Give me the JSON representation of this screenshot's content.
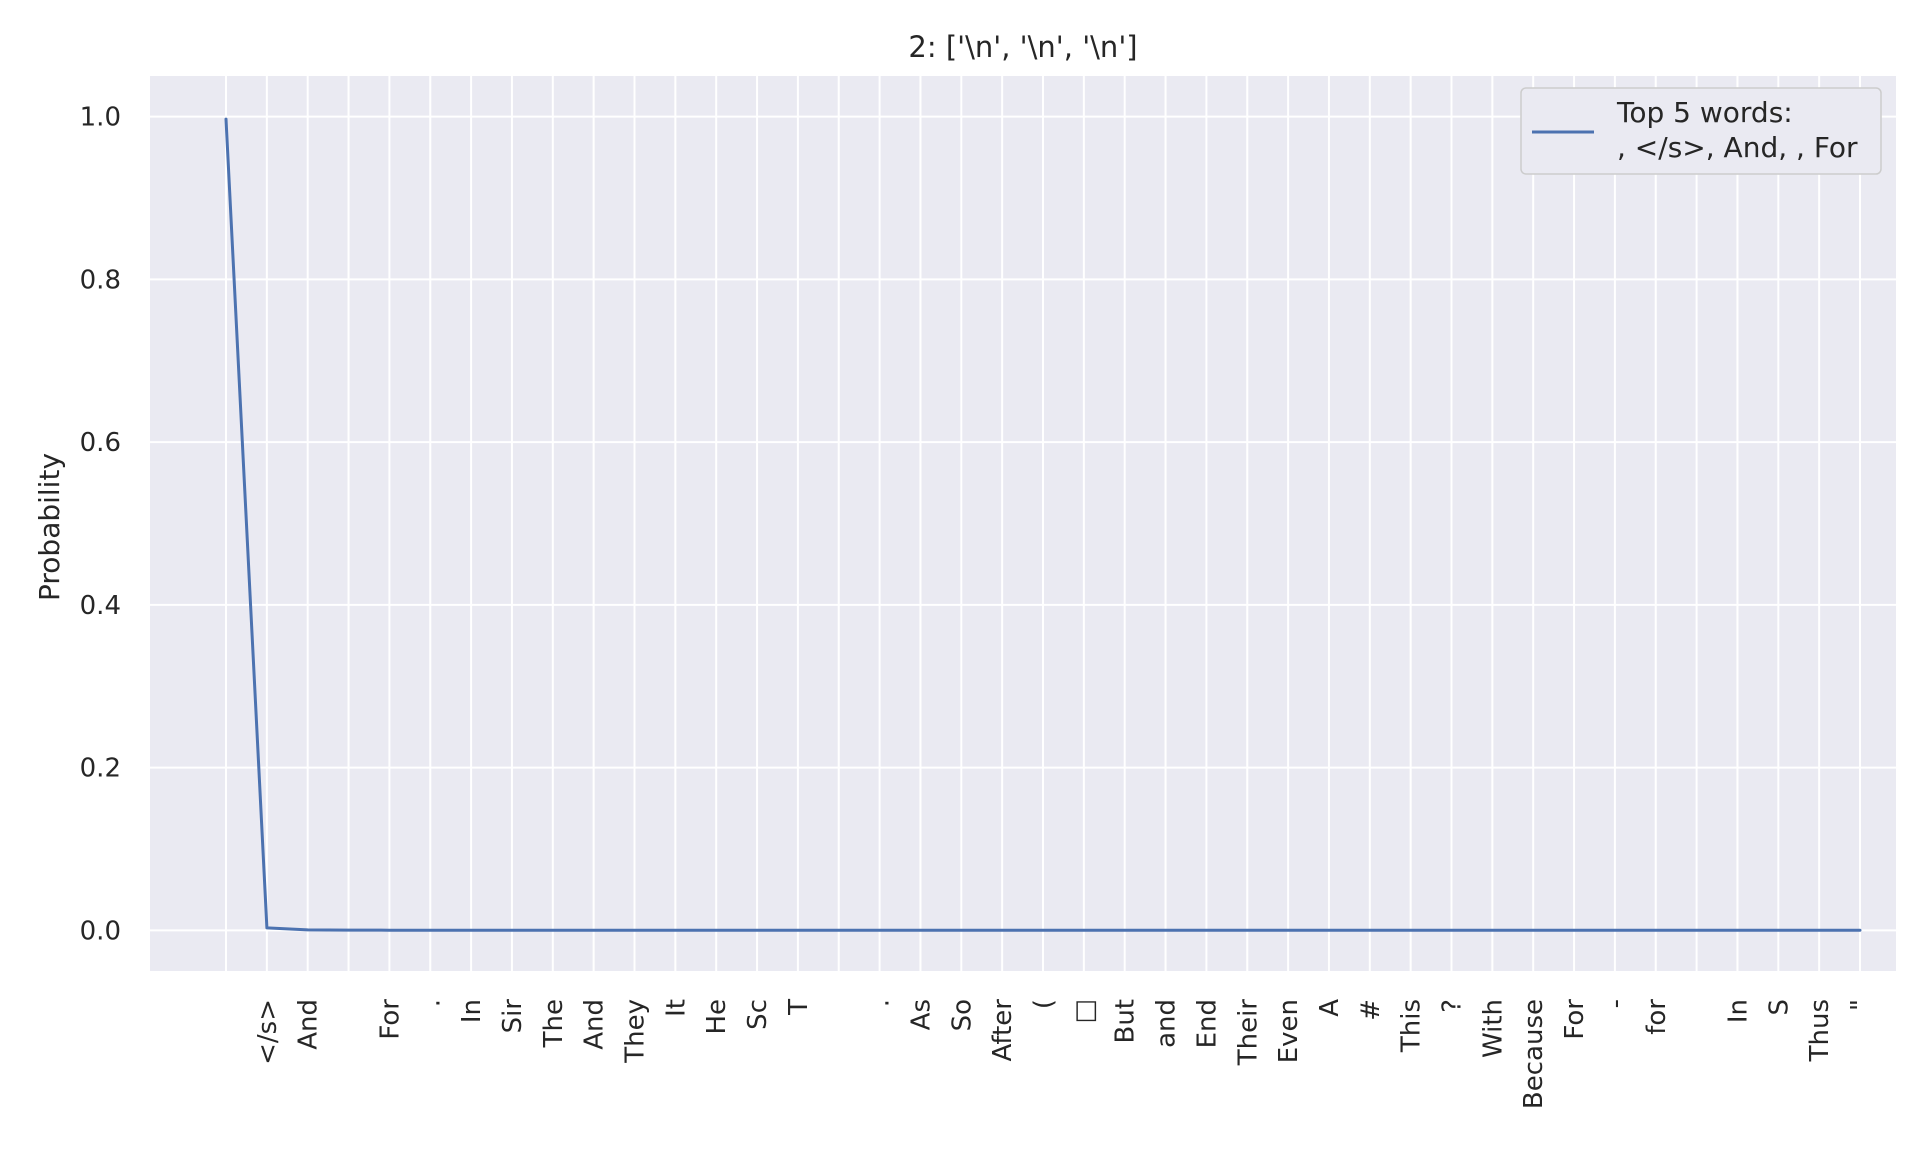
{
  "chart_data": {
    "type": "line",
    "title": "2: ['\\n', '\\n', '\\n']",
    "xlabel": "",
    "ylabel": "Probability",
    "ylim": [
      -0.05,
      1.05
    ],
    "yticks": [
      0.0,
      0.2,
      0.4,
      0.6,
      0.8,
      1.0
    ],
    "ytick_labels": [
      "0.0",
      "0.2",
      "0.4",
      "0.6",
      "0.8",
      "1.0"
    ],
    "grid": true,
    "legend_position": "top-right",
    "categories": [
      "",
      "</s>",
      "And",
      "",
      "For",
      ".",
      "In",
      "Sir",
      "The",
      "And",
      "They",
      "It",
      "He",
      "Sc",
      "T",
      "",
      ".",
      "As",
      "So",
      "After",
      "(",
      "□",
      "But",
      "and",
      "End",
      "Their",
      "Even",
      "A",
      "#",
      "This",
      "?",
      "With",
      "Because",
      "For",
      "-",
      "for",
      "",
      "In",
      "S",
      "Thus",
      "\""
    ],
    "series": [
      {
        "name": "Top 5 words:\n, </s>, And, , For",
        "color": "#4c72b0",
        "values": [
          0.997,
          0.003,
          0.0005,
          0.0003,
          0.0002,
          0.0001,
          0.0001,
          0.0001,
          0.0001,
          0.0001,
          0.0001,
          0.0001,
          0.0001,
          0.0001,
          0.0001,
          0.0001,
          0.0001,
          0.0001,
          0.0001,
          0.0001,
          0.0001,
          0.0001,
          0.0001,
          0.0001,
          0.0001,
          0.0001,
          0.0001,
          0.0001,
          0.0001,
          0.0001,
          0.0001,
          0.0001,
          0.0001,
          0.0001,
          0.0001,
          0.0001,
          0.0001,
          0.0001,
          0.0001,
          0.0001,
          0.0001
        ]
      }
    ],
    "legend": {
      "line1": "Top 5 words:",
      "line2": ", </s>, And, , For"
    },
    "colors": {
      "plot_background": "#eaeaf2",
      "grid": "#ffffff",
      "line": "#4c72b0"
    }
  }
}
